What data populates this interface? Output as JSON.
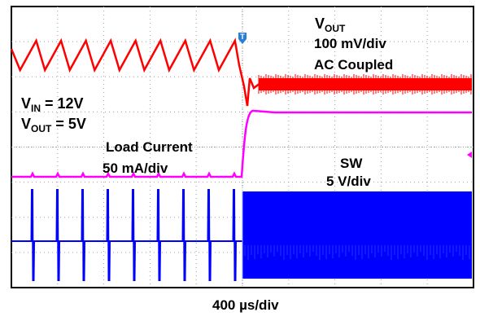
{
  "chart_data": {
    "type": "line",
    "title": "",
    "grid": true,
    "timebase": "400 µs/div",
    "annotations": {
      "vout_symbol": "V",
      "vout_sub": "OUT",
      "vout_scale": "100 mV/div",
      "vout_coupling": "AC Coupled",
      "vin_symbol": "V",
      "vin_sub": "IN",
      "vin_value": " = 12V",
      "vout2_symbol": "V",
      "vout2_sub": "OUT",
      "vout2_value": " = 5V",
      "load_name": "Load Current",
      "load_scale": "50 mA/div",
      "sw_name": "SW",
      "sw_scale": "5 V/div",
      "trigger_marker": "T"
    },
    "colors": {
      "vout": "#ff0000",
      "load_current": "#ff00ff",
      "sw": "#0000ff",
      "grid": "#a0a0a0"
    },
    "series": [
      {
        "name": "VOUT",
        "before_step": "sawtooth ripple, 9 cycles",
        "after_step": "steady with high-frequency ripple"
      },
      {
        "name": "Load Current",
        "before_step": "low level, 50 mA/div",
        "after_step": "high level, 50 mA/div"
      },
      {
        "name": "SW",
        "before_step": "burst pulses, 9 pulses",
        "after_step": "continuous switching"
      }
    ],
    "step_division": 5.0,
    "divisions": {
      "x": 10,
      "y": 8
    }
  }
}
